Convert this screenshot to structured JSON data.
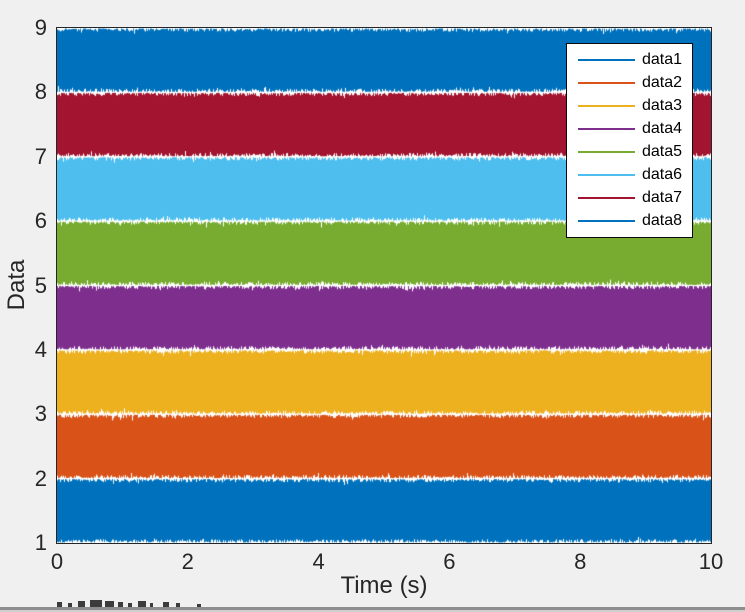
{
  "figure": {
    "background_color": "#F0F0F0",
    "plot_background_color": "#FFFFFF",
    "axis_color": "#262626",
    "text_color": "#262626"
  },
  "chart_data": {
    "type": "line",
    "title": "",
    "xlabel": "Time (s)",
    "ylabel": "Data",
    "xlim": [
      0,
      10
    ],
    "ylim": [
      1,
      9
    ],
    "x_ticks": [
      "0",
      "2",
      "4",
      "6",
      "8",
      "10"
    ],
    "y_ticks": [
      "1",
      "2",
      "3",
      "4",
      "5",
      "6",
      "7",
      "8",
      "9"
    ],
    "grid": false,
    "appearance": "eight dense uniform-noise signals, each solidly filling a one-unit horizontal band",
    "legend": {
      "position": "top-right",
      "background": "#FFFFFF",
      "border_color": "#000000"
    },
    "series": [
      {
        "name": "data1",
        "color": "#0072BD",
        "band": [
          1,
          2
        ]
      },
      {
        "name": "data2",
        "color": "#D95319",
        "band": [
          2,
          3
        ]
      },
      {
        "name": "data3",
        "color": "#EDB120",
        "band": [
          3,
          4
        ]
      },
      {
        "name": "data4",
        "color": "#7E2F8E",
        "band": [
          4,
          5
        ]
      },
      {
        "name": "data5",
        "color": "#77AC30",
        "band": [
          5,
          6
        ]
      },
      {
        "name": "data6",
        "color": "#4DBEEE",
        "band": [
          6,
          7
        ]
      },
      {
        "name": "data7",
        "color": "#A2142F",
        "band": [
          7,
          8
        ]
      },
      {
        "name": "data8",
        "color": "#0072BD",
        "band": [
          8,
          9
        ]
      }
    ]
  }
}
